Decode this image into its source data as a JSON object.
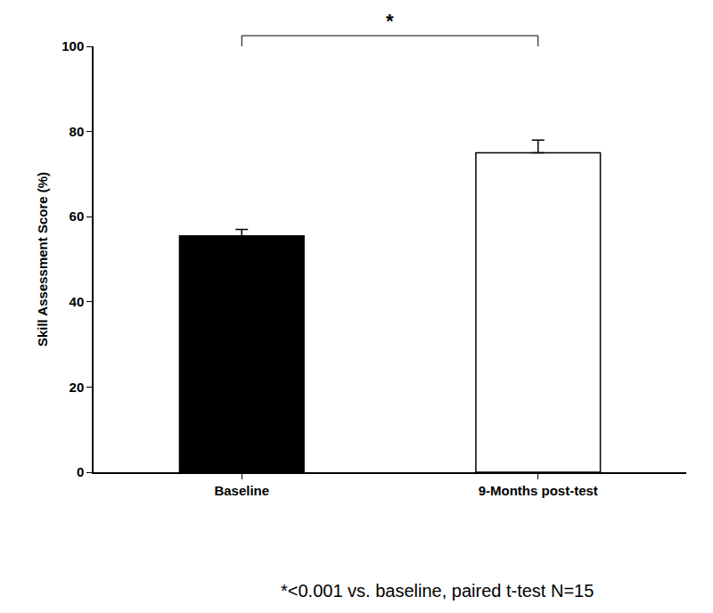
{
  "chart_data": {
    "type": "bar",
    "categories": [
      "Baseline",
      "9-Months post-test"
    ],
    "values": [
      55.5,
      75
    ],
    "errors": [
      1.5,
      3
    ],
    "colors": [
      "#000000",
      "#ffffff"
    ],
    "y_label": "Skill Assessment Score (%)",
    "ylim": [
      0,
      100
    ],
    "yticks": [
      0,
      20,
      40,
      60,
      80,
      100
    ],
    "grid": false,
    "annotation": "*",
    "footnote": "*<0.001 vs. baseline, paired t-test N=15"
  }
}
